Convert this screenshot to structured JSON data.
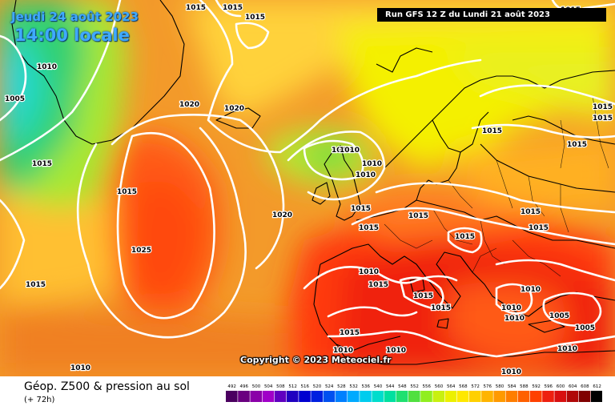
{
  "header": {
    "date_label": "Jeudi 24 août 2023",
    "time_label": "14:00 locale",
    "run_label": "Run GFS 12 Z du Lundi 21 août 2023"
  },
  "copyright": "Copyright © 2023 Meteociel.fr",
  "footer": {
    "title": "Géop. Z500 & pression au sol",
    "subtitle": "(+ 72h)"
  },
  "colors": {
    "ocean_bg": "#f08020",
    "isobar": "#ffffff",
    "run_box_bg": "#000000",
    "title_blue": "#3fa9ff"
  },
  "color_scale": {
    "ticks": [
      "492",
      "496",
      "500",
      "504",
      "508",
      "512",
      "516",
      "520",
      "524",
      "528",
      "532",
      "536",
      "540",
      "544",
      "548",
      "552",
      "556",
      "560",
      "564",
      "568",
      "572",
      "576",
      "580",
      "584",
      "588",
      "592",
      "596",
      "600",
      "604",
      "608",
      "612"
    ],
    "colors": [
      "#4b0060",
      "#6a0080",
      "#8a00a8",
      "#a000c8",
      "#6000c0",
      "#2000c0",
      "#0000d0",
      "#0020e0",
      "#0050f0",
      "#0080ff",
      "#00aaff",
      "#00ccee",
      "#00ddcc",
      "#00e0a0",
      "#20e070",
      "#50e040",
      "#90ee20",
      "#c8f010",
      "#ecf000",
      "#ffe800",
      "#ffd000",
      "#ffb400",
      "#ff9a00",
      "#ff7e00",
      "#ff6000",
      "#ff4000",
      "#ee2010",
      "#d81010",
      "#b00808",
      "#800000",
      "#000000"
    ]
  },
  "pressure_labels": [
    {
      "text": "1015"
    },
    {
      "text": "1015"
    },
    {
      "text": "1015"
    },
    {
      "text": "1015"
    },
    {
      "text": "1010"
    },
    {
      "text": "1005"
    },
    {
      "text": "1020"
    },
    {
      "text": "1020"
    },
    {
      "text": "1015"
    },
    {
      "text": "1015"
    },
    {
      "text": "1015"
    },
    {
      "text": "1025"
    },
    {
      "text": "1015"
    },
    {
      "text": "1010"
    },
    {
      "text": "1010"
    },
    {
      "text": "1010"
    },
    {
      "text": "1010"
    },
    {
      "text": "1020"
    },
    {
      "text": "1015"
    },
    {
      "text": "1015"
    },
    {
      "text": "1015"
    },
    {
      "text": "1015"
    },
    {
      "text": "1015"
    },
    {
      "text": "1015"
    },
    {
      "text": "1015"
    },
    {
      "text": "1015"
    },
    {
      "text": "1015"
    },
    {
      "text": "1010"
    },
    {
      "text": "1015"
    },
    {
      "text": "1015"
    },
    {
      "text": "1015"
    },
    {
      "text": "1010"
    },
    {
      "text": "1010"
    },
    {
      "text": "1010"
    },
    {
      "text": "1005"
    },
    {
      "text": "1005"
    },
    {
      "text": "1010"
    },
    {
      "text": "1015"
    },
    {
      "text": "1010"
    },
    {
      "text": "1010"
    },
    {
      "text": "1010"
    },
    {
      "text": "1010"
    }
  ]
}
